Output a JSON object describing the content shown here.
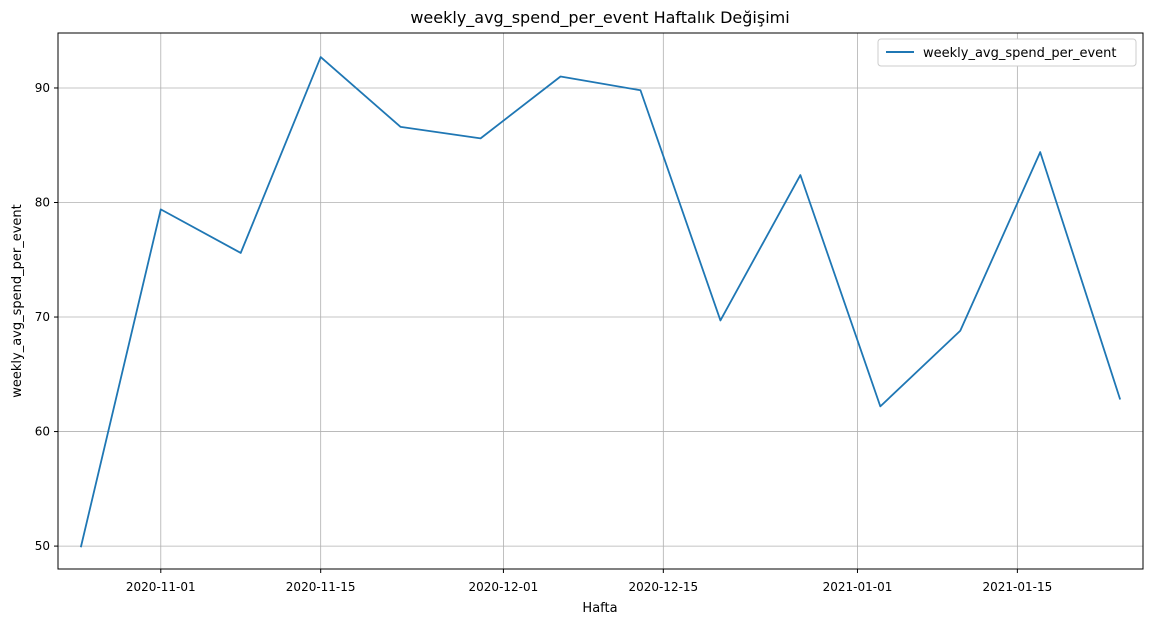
{
  "chart_data": {
    "type": "line",
    "title": "weekly_avg_spend_per_event Haftalık Değişimi",
    "xlabel": "Hafta",
    "ylabel": "weekly_avg_spend_per_event",
    "x": [
      "2020-10-25",
      "2020-11-01",
      "2020-11-08",
      "2020-11-15",
      "2020-11-22",
      "2020-11-29",
      "2020-12-06",
      "2020-12-13",
      "2020-12-20",
      "2020-12-27",
      "2021-01-03",
      "2021-01-10",
      "2021-01-17",
      "2021-01-24"
    ],
    "series": [
      {
        "name": "weekly_avg_spend_per_event",
        "color": "#1f77b4",
        "values": [
          49.9,
          79.4,
          75.6,
          92.7,
          86.6,
          85.6,
          91.0,
          89.8,
          69.7,
          82.4,
          62.2,
          68.8,
          84.4,
          62.8
        ]
      }
    ],
    "xlim": [
      "2020-10-23",
      "2021-01-26"
    ],
    "ylim": [
      48.0,
      94.8
    ],
    "xticks": [
      "2020-11-01",
      "2020-11-15",
      "2020-12-01",
      "2020-12-15",
      "2021-01-01",
      "2021-01-15"
    ],
    "yticks": [
      50,
      60,
      70,
      80,
      90
    ],
    "grid": true,
    "legend_position": "top-right"
  }
}
